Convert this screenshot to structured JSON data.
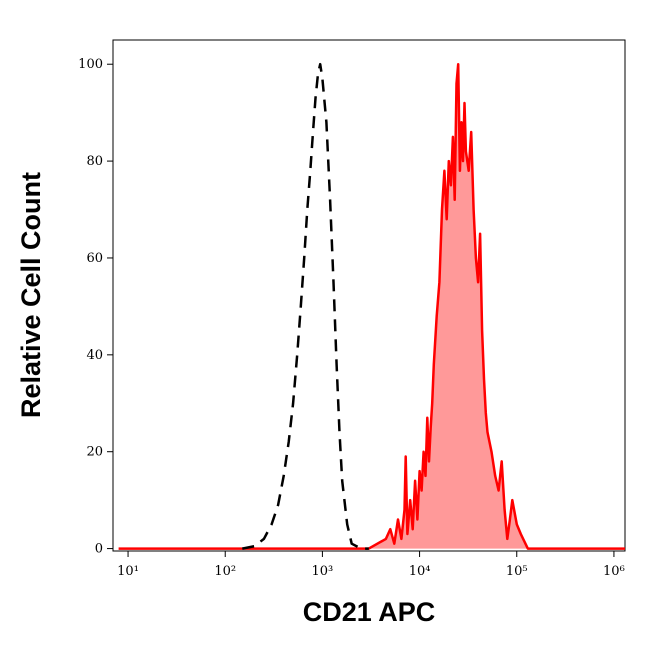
{
  "chart_data": {
    "type": "histogram-overlay",
    "x_label": "CD21 APC",
    "y_label": "Relative Cell Count",
    "xscale": "log",
    "xlim": [
      7,
      1300000
    ],
    "ylim": [
      -0.5,
      105
    ],
    "xticks": [
      {
        "value": 10,
        "label": "10¹"
      },
      {
        "value": 100,
        "label": "10²"
      },
      {
        "value": 1000,
        "label": "10³"
      },
      {
        "value": 10000,
        "label": "10⁴"
      },
      {
        "value": 100000,
        "label": "10⁵"
      },
      {
        "value": 1000000,
        "label": "10⁶"
      }
    ],
    "yticks": [
      0,
      20,
      40,
      60,
      80,
      100
    ],
    "series": [
      {
        "color": "#ff0000",
        "fill": "#ff9999",
        "linestyle": "solid",
        "x": [
          8,
          100,
          1000,
          3000,
          4500,
          5000,
          5500,
          6000,
          6500,
          7000,
          7200,
          7500,
          8000,
          8500,
          9000,
          9500,
          10000,
          10500,
          11000,
          11500,
          12000,
          12500,
          13000,
          13500,
          14000,
          15000,
          16000,
          17000,
          18000,
          19000,
          20000,
          21000,
          22000,
          23000,
          24000,
          25000,
          26000,
          27000,
          28000,
          29000,
          30000,
          32000,
          34000,
          36000,
          38000,
          40000,
          42000,
          44000,
          46000,
          48000,
          50000,
          55000,
          60000,
          65000,
          70000,
          75000,
          80000,
          85000,
          90000,
          100000,
          110000,
          130000,
          200000,
          1000000,
          1300000
        ],
        "values": [
          0,
          0,
          0,
          0,
          2,
          4,
          1,
          6,
          2,
          8,
          19,
          3,
          10,
          4,
          14,
          6,
          16,
          12,
          20,
          15,
          27,
          18,
          25,
          30,
          38,
          48,
          55,
          70,
          78,
          68,
          80,
          75,
          85,
          72,
          96,
          100,
          78,
          88,
          80,
          92,
          82,
          78,
          86,
          70,
          60,
          55,
          65,
          45,
          35,
          28,
          24,
          20,
          15,
          12,
          18,
          8,
          2,
          6,
          10,
          5,
          3,
          0,
          0,
          0,
          0
        ]
      },
      {
        "color": "#000000",
        "fill": null,
        "linestyle": "dashed",
        "x": [
          150,
          200,
          250,
          300,
          350,
          400,
          450,
          500,
          550,
          600,
          650,
          700,
          750,
          800,
          850,
          900,
          950,
          1000,
          1100,
          1200,
          1300,
          1400,
          1500,
          1600,
          1800,
          2000,
          2500,
          3000
        ],
        "values": [
          0,
          0.5,
          2,
          5,
          9,
          15,
          22,
          30,
          40,
          50,
          60,
          70,
          78,
          86,
          93,
          98,
          100,
          97,
          88,
          72,
          55,
          38,
          24,
          14,
          5,
          1,
          0,
          0
        ]
      }
    ]
  }
}
